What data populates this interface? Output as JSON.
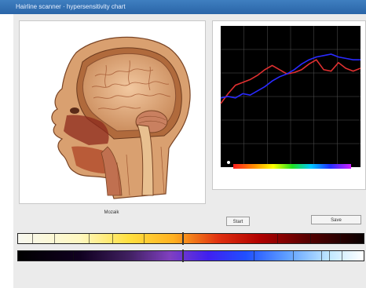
{
  "window": {
    "title": "Hairline scanner · hypersensitivity chart"
  },
  "left_panel": {
    "caption": "Mozaik"
  },
  "controls": {
    "small_button": "Start",
    "right_button": "Save"
  },
  "chart_data": {
    "type": "line",
    "x": [
      1,
      2,
      3,
      4,
      5,
      6,
      7,
      8,
      9,
      10,
      11,
      12,
      13,
      14,
      15,
      16,
      17,
      18,
      19,
      20
    ],
    "ylim": [
      0,
      10
    ],
    "grid": true,
    "legend": "none",
    "background": "#000000",
    "series": [
      {
        "color": "#e03030",
        "values": [
          4.5,
          5.2,
          5.8,
          6.0,
          6.2,
          6.5,
          6.9,
          7.2,
          6.9,
          6.6,
          6.7,
          6.9,
          7.3,
          7.6,
          6.9,
          6.8,
          7.4,
          7.0,
          6.8,
          7.0
        ]
      },
      {
        "color": "#2a2aff",
        "values": [
          4.9,
          5.0,
          4.9,
          5.2,
          5.1,
          5.4,
          5.7,
          6.1,
          6.4,
          6.6,
          6.9,
          7.3,
          7.6,
          7.8,
          7.9,
          8.0,
          7.8,
          7.7,
          7.6,
          7.6
        ]
      }
    ]
  },
  "colors": {
    "accent": "#2a65a8",
    "frame": "#ebebeb"
  }
}
